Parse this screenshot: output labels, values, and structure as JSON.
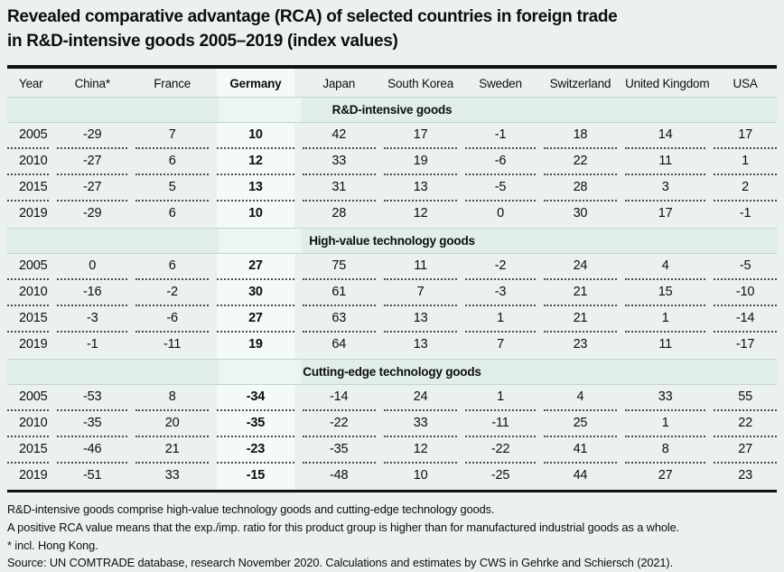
{
  "title": {
    "line1": "Revealed comparative advantage (RCA) of selected countries in foreign trade",
    "line2": "in R&D-intensive goods 2005–2019 (index values)"
  },
  "table": {
    "columns": [
      "Year",
      "China*",
      "France",
      "Germany",
      "Japan",
      "South Korea",
      "Sweden",
      "Switzerland",
      "United Kingdom",
      "USA"
    ],
    "highlight_column": "Germany",
    "sections": [
      {
        "label": "R&D-intensive goods",
        "rows": [
          {
            "year": "2005",
            "values": [
              -29,
              7,
              10,
              42,
              17,
              -1,
              18,
              14,
              17
            ]
          },
          {
            "year": "2010",
            "values": [
              -27,
              6,
              12,
              33,
              19,
              -6,
              22,
              11,
              1
            ]
          },
          {
            "year": "2015",
            "values": [
              -27,
              5,
              13,
              31,
              13,
              -5,
              28,
              3,
              2
            ]
          },
          {
            "year": "2019",
            "values": [
              -29,
              6,
              10,
              28,
              12,
              0,
              30,
              17,
              -1
            ]
          }
        ]
      },
      {
        "label": "High-value technology goods",
        "rows": [
          {
            "year": "2005",
            "values": [
              0,
              6,
              27,
              75,
              11,
              -2,
              24,
              4,
              -5
            ]
          },
          {
            "year": "2010",
            "values": [
              -16,
              -2,
              30,
              61,
              7,
              -3,
              21,
              15,
              -10
            ]
          },
          {
            "year": "2015",
            "values": [
              -3,
              -6,
              27,
              63,
              13,
              1,
              21,
              1,
              -14
            ]
          },
          {
            "year": "2019",
            "values": [
              -1,
              -11,
              19,
              64,
              13,
              7,
              23,
              11,
              -17
            ]
          }
        ]
      },
      {
        "label": "Cutting-edge technology goods",
        "rows": [
          {
            "year": "2005",
            "values": [
              -53,
              8,
              -34,
              -14,
              24,
              1,
              4,
              33,
              55
            ]
          },
          {
            "year": "2010",
            "values": [
              -35,
              20,
              -35,
              -22,
              33,
              -11,
              25,
              1,
              22
            ]
          },
          {
            "year": "2015",
            "values": [
              -46,
              21,
              -23,
              -35,
              12,
              -22,
              41,
              8,
              27
            ]
          },
          {
            "year": "2019",
            "values": [
              -51,
              33,
              -15,
              -48,
              10,
              -25,
              44,
              27,
              23
            ]
          }
        ]
      }
    ]
  },
  "footnotes": [
    "R&D-intensive goods comprise high-value technology goods and cutting-edge technology goods.",
    "A positive RCA value means that the exp./imp. ratio for this product group is higher than for manufactured industrial goods as a whole.",
    "* incl. Hong Kong.",
    "Source: UN COMTRADE database, research November 2020. Calculations and estimates by CWS in Gehrke and Schiersch (2021)."
  ],
  "colors": {
    "page_background": "#eaf1f0",
    "germany_column_highlight": "#f3faf8",
    "section_band": "#e0edeb",
    "section_band_over_highlight": "#ecf5f2",
    "rule": "#111111",
    "dotted_separator": "#4c4c4c"
  }
}
